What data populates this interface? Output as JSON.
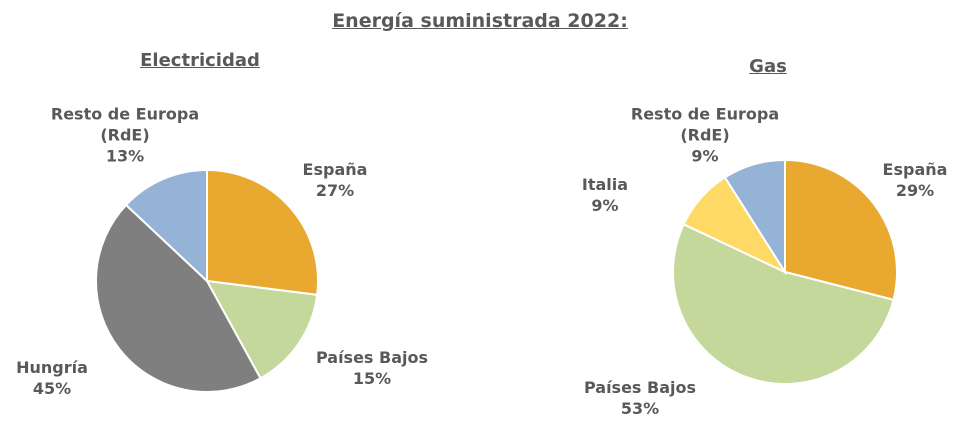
{
  "title": "Energía suministrada 2022:",
  "chart_data": [
    {
      "type": "pie",
      "title": "Electricidad",
      "categories": [
        "España",
        "Países Bajos",
        "Hungría",
        "Resto de Europa (RdE)"
      ],
      "values": [
        27,
        15,
        45,
        13
      ],
      "value_labels": [
        "27%",
        "15%",
        "45%",
        "13%"
      ],
      "colors": [
        "#E9A830",
        "#C5D89B",
        "#7F7F7F",
        "#95B3D7"
      ]
    },
    {
      "type": "pie",
      "title": "Gas",
      "categories": [
        "España",
        "Países Bajos",
        "Italia",
        "Resto de Europa (RdE)"
      ],
      "values": [
        29,
        53,
        9,
        9
      ],
      "value_labels": [
        "29%",
        "53%",
        "9%",
        "9%"
      ],
      "colors": [
        "#E9A830",
        "#C5D89B",
        "#FFD966",
        "#95B3D7"
      ]
    }
  ]
}
